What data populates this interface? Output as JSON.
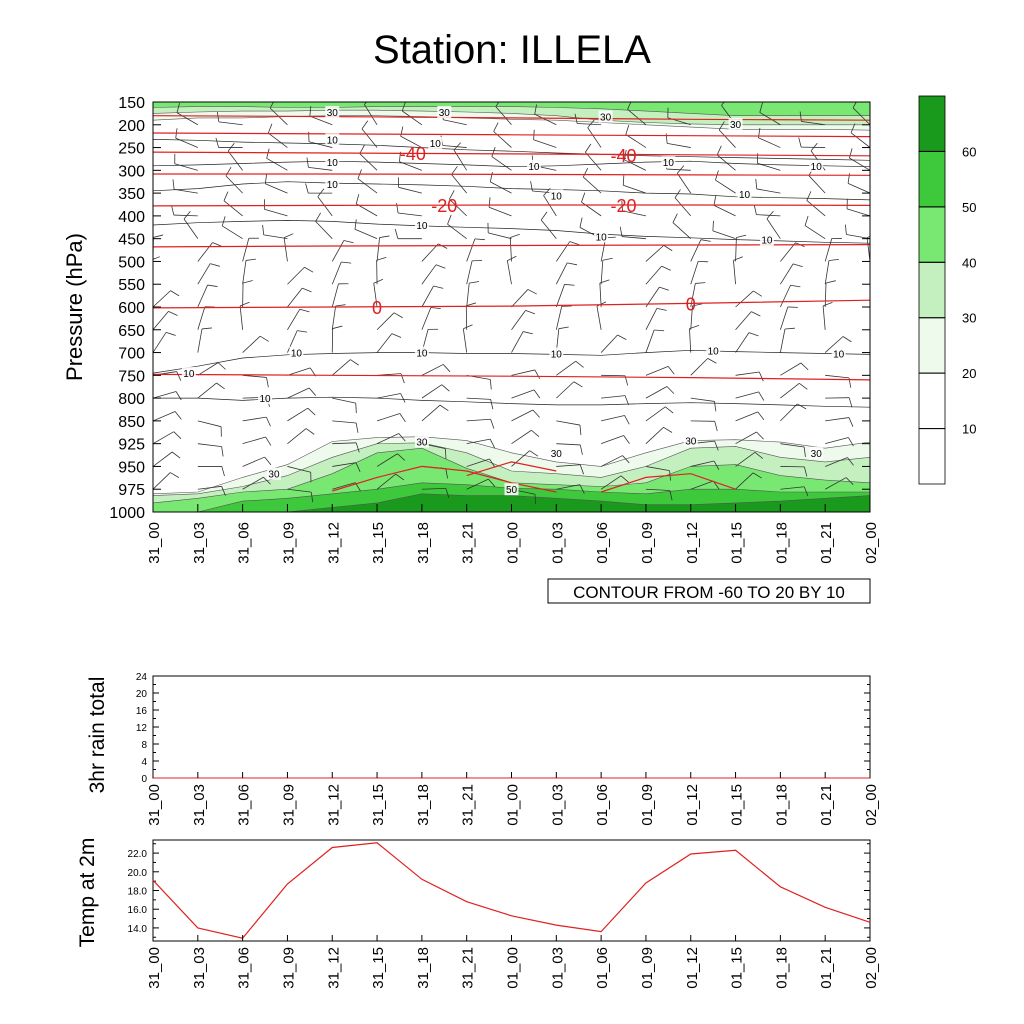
{
  "title": "Station: ILLELA",
  "time_labels": [
    "31_00",
    "31_03",
    "31_06",
    "31_09",
    "31_12",
    "31_15",
    "31_18",
    "31_21",
    "01_00",
    "01_03",
    "01_06",
    "01_09",
    "01_12",
    "01_15",
    "01_18",
    "01_21",
    "02_00"
  ],
  "chart_data": [
    {
      "id": "cross-section",
      "type": "heatmap",
      "ylabel": "Pressure (hPa)",
      "pressure_levels": [
        150,
        200,
        250,
        300,
        350,
        400,
        450,
        500,
        550,
        600,
        650,
        700,
        750,
        800,
        850,
        925,
        950,
        975,
        1000
      ],
      "ylim": [
        150,
        1000
      ],
      "y_inverted": true,
      "contour_label": "CONTOUR FROM -60 TO 20 BY 10",
      "temperature_contours": [
        {
          "label": "-40",
          "pressure": [
            260,
            262,
            264,
            266,
            268
          ],
          "label_at": [
            [
              5.8,
              -40
            ],
            [
              10.5,
              -40
            ]
          ]
        },
        {
          "label": "-20",
          "pressure": [
            378,
            377,
            376,
            376,
            377
          ],
          "label_at": [
            [
              6.5,
              -20
            ],
            [
              10.5,
              -20
            ]
          ]
        },
        {
          "label": "0",
          "pressure": [
            602,
            600,
            598,
            592,
            585
          ],
          "label_at": [
            [
              5,
              0
            ],
            [
              12,
              0
            ]
          ]
        }
      ],
      "humidity_contour_labels": [
        "10",
        "30",
        "50"
      ],
      "colorbar": {
        "levels": [
          "10",
          "20",
          "30",
          "40",
          "50",
          "60"
        ],
        "colors": [
          "#ffffff",
          "#ffffff",
          "#eefaec",
          "#c4f0bf",
          "#79e873",
          "#3ec83b",
          "#1a9a1c"
        ]
      }
    },
    {
      "id": "rain",
      "type": "line",
      "ylabel": "3hr rain total",
      "yticks": [
        "0",
        "4",
        "8",
        "12",
        "16",
        "20",
        "24"
      ],
      "ylim": [
        0,
        24
      ],
      "values": [
        0,
        0,
        0,
        0,
        0,
        0,
        0,
        0,
        0,
        0,
        0,
        0,
        0,
        0,
        0,
        0,
        0
      ]
    },
    {
      "id": "temp",
      "type": "line",
      "ylabel": "Temp at 2m",
      "yticks": [
        "14.0",
        "16.0",
        "18.0",
        "20.0",
        "22.0"
      ],
      "ylim": [
        12.6,
        23.4
      ],
      "values": [
        19.1,
        14.0,
        12.9,
        18.7,
        22.6,
        23.1,
        19.2,
        16.8,
        15.3,
        14.3,
        13.6,
        18.8,
        21.9,
        22.3,
        18.4,
        16.2,
        14.6
      ],
      "color": "#e02020"
    }
  ]
}
